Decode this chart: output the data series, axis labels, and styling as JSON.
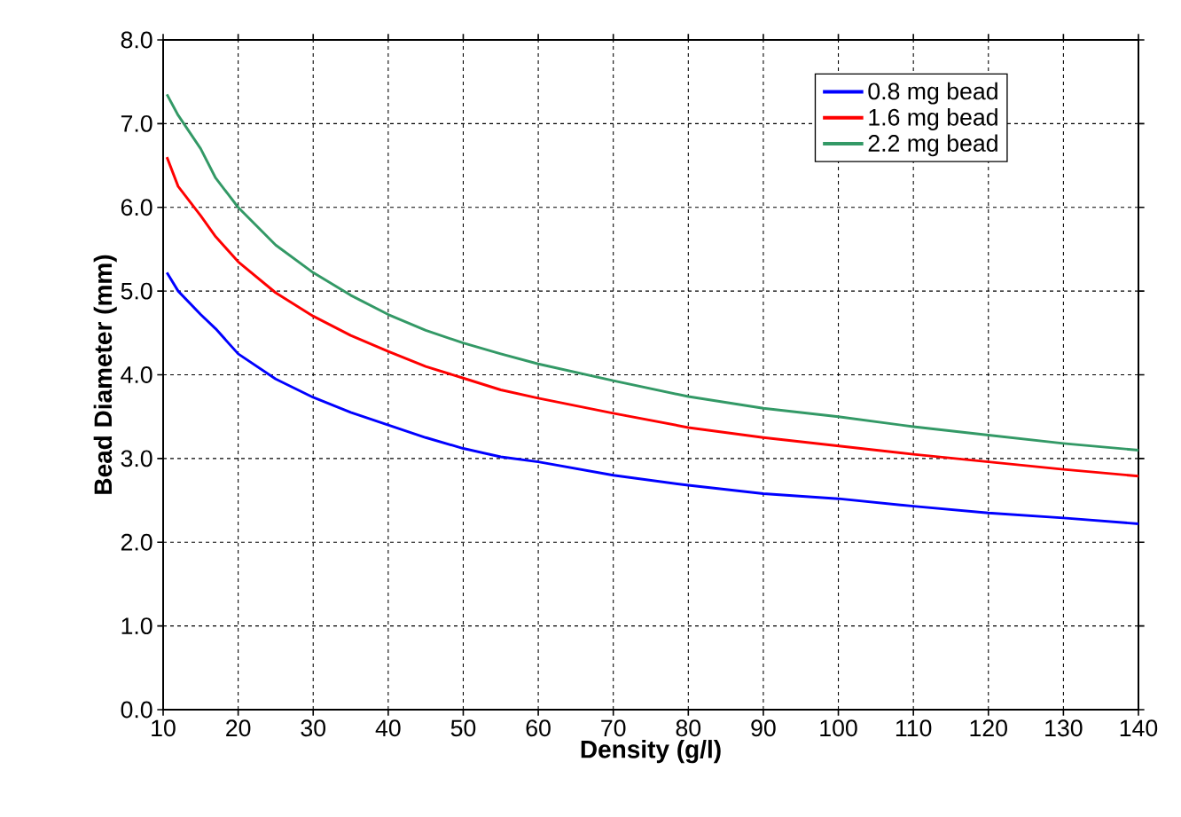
{
  "chart_data": {
    "type": "line",
    "xlabel": "Density (g/l)",
    "ylabel": "Bead Diameter (mm)",
    "x": [
      10.5,
      12,
      15,
      17,
      20,
      25,
      30,
      35,
      40,
      45,
      50,
      55,
      60,
      70,
      80,
      90,
      100,
      110,
      120,
      130,
      140
    ],
    "series": [
      {
        "name": "0.8 mg bead",
        "color": "#0000ff",
        "values": [
          5.22,
          5.0,
          4.72,
          4.55,
          4.25,
          3.95,
          3.73,
          3.55,
          3.4,
          3.25,
          3.12,
          3.02,
          2.96,
          2.8,
          2.68,
          2.58,
          2.52,
          2.43,
          2.35,
          2.29,
          2.22
        ]
      },
      {
        "name": "1.6 mg bead",
        "color": "#ff0000",
        "values": [
          6.6,
          6.25,
          5.9,
          5.65,
          5.35,
          4.98,
          4.7,
          4.47,
          4.28,
          4.1,
          3.96,
          3.82,
          3.72,
          3.54,
          3.37,
          3.25,
          3.15,
          3.05,
          2.96,
          2.87,
          2.79
        ]
      },
      {
        "name": "2.2 mg bead",
        "color": "#339966",
        "values": [
          7.35,
          7.1,
          6.7,
          6.35,
          6.0,
          5.55,
          5.22,
          4.95,
          4.72,
          4.53,
          4.38,
          4.25,
          4.13,
          3.93,
          3.74,
          3.6,
          3.5,
          3.38,
          3.28,
          3.18,
          3.1
        ]
      }
    ],
    "xlim": [
      10,
      140
    ],
    "ylim": [
      0,
      8
    ],
    "xticks": [
      10,
      20,
      30,
      40,
      50,
      60,
      70,
      80,
      90,
      100,
      110,
      120,
      130,
      140
    ],
    "yticks": [
      {
        "value": 0,
        "label": "0.0"
      },
      {
        "value": 1,
        "label": "1.0"
      },
      {
        "value": 2,
        "label": "2.0"
      },
      {
        "value": 3,
        "label": "3.0"
      },
      {
        "value": 4,
        "label": "4.0"
      },
      {
        "value": 5,
        "label": "5.0"
      },
      {
        "value": 6,
        "label": "6.0"
      },
      {
        "value": 7,
        "label": "7.0"
      },
      {
        "value": 8,
        "label": "8.0"
      }
    ],
    "grid": true,
    "legend": "top right"
  }
}
